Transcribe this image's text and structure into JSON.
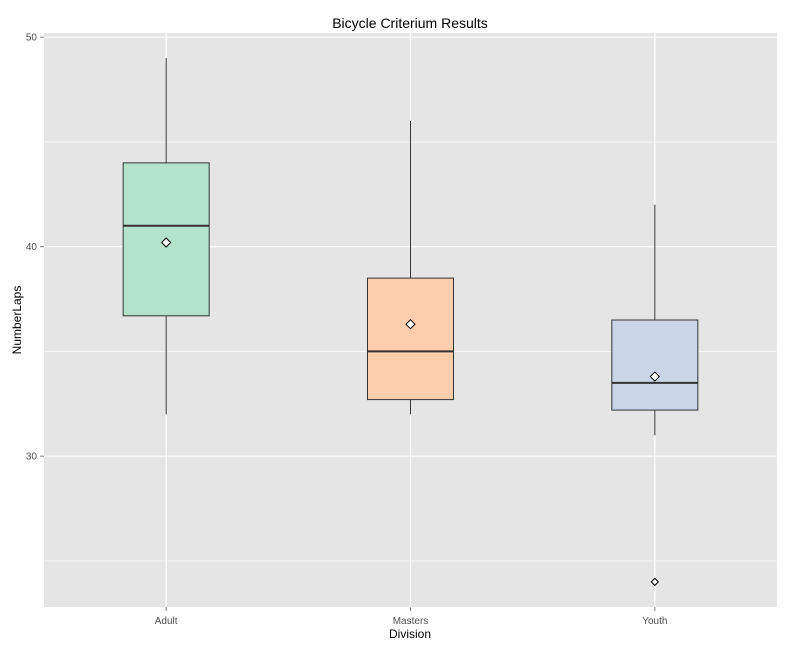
{
  "chart_data": {
    "type": "box",
    "title": "Bicycle Criterium Results",
    "xlabel": "Division",
    "ylabel": "NumberLaps",
    "categories": [
      "Adult",
      "Masters",
      "Youth"
    ],
    "ylim": [
      22.8,
      50.2
    ],
    "yticks": [
      30,
      40,
      50
    ],
    "grid": true,
    "series": [
      {
        "category": "Adult",
        "min": 32,
        "q1": 36.7,
        "median": 41,
        "q3": 44,
        "max": 49,
        "mean": 40.2,
        "outliers": [],
        "fill": "#b3e2cd"
      },
      {
        "category": "Masters",
        "min": 32,
        "q1": 32.7,
        "median": 35,
        "q3": 38.5,
        "max": 46,
        "mean": 36.3,
        "outliers": [],
        "fill": "#fdcdac"
      },
      {
        "category": "Youth",
        "min": 31,
        "q1": 32.2,
        "median": 33.5,
        "q3": 36.5,
        "max": 42,
        "mean": 33.8,
        "outliers": [
          24
        ],
        "fill": "#cbd5e8"
      }
    ],
    "colors": {
      "panel": "#e5e5e5",
      "grid": "#ffffff",
      "box_border": "#333333"
    }
  }
}
